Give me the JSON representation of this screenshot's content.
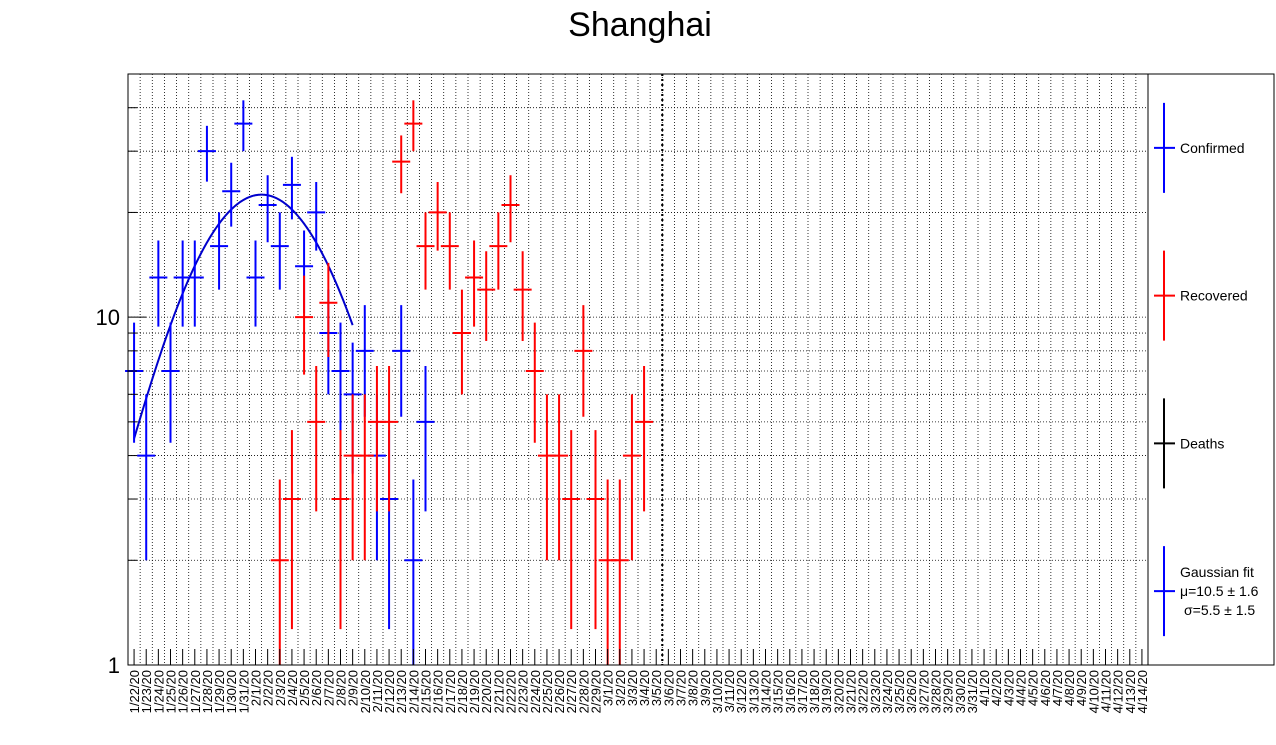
{
  "chart_data": {
    "type": "errorbar-scatter",
    "title": "Shanghai",
    "xlabel": "",
    "ylabel": "",
    "y_scale": "log",
    "ylim": [
      1,
      50
    ],
    "y_tick_labels": [
      {
        "value": 1,
        "label": "1"
      },
      {
        "value": 10,
        "label": "10"
      }
    ],
    "categories": [
      "1/22/20",
      "1/23/20",
      "1/24/20",
      "1/25/20",
      "1/26/20",
      "1/27/20",
      "1/28/20",
      "1/29/20",
      "1/30/20",
      "1/31/20",
      "2/1/20",
      "2/2/20",
      "2/3/20",
      "2/4/20",
      "2/5/20",
      "2/6/20",
      "2/7/20",
      "2/8/20",
      "2/9/20",
      "2/10/20",
      "2/11/20",
      "2/12/20",
      "2/13/20",
      "2/14/20",
      "2/15/20",
      "2/16/20",
      "2/17/20",
      "2/18/20",
      "2/19/20",
      "2/20/20",
      "2/21/20",
      "2/22/20",
      "2/23/20",
      "2/24/20",
      "2/25/20",
      "2/26/20",
      "2/27/20",
      "2/28/20",
      "2/29/20",
      "3/1/20",
      "3/2/20",
      "3/3/20",
      "3/4/20",
      "3/5/20",
      "3/6/20",
      "3/7/20",
      "3/8/20",
      "3/9/20",
      "3/10/20",
      "3/11/20",
      "3/12/20",
      "3/13/20",
      "3/14/20",
      "3/15/20",
      "3/16/20",
      "3/17/20",
      "3/18/20",
      "3/19/20",
      "3/20/20",
      "3/21/20",
      "3/22/20",
      "3/23/20",
      "3/24/20",
      "3/25/20",
      "3/26/20",
      "3/27/20",
      "3/28/20",
      "3/29/20",
      "3/30/20",
      "3/31/20",
      "4/1/20",
      "4/2/20",
      "4/3/20",
      "4/4/20",
      "4/5/20",
      "4/6/20",
      "4/7/20",
      "4/8/20",
      "4/9/20",
      "4/10/20",
      "4/11/20",
      "4/12/20",
      "4/13/20",
      "4/14/20"
    ],
    "series": [
      {
        "name": "Confirmed",
        "color": "#0000ff",
        "points": [
          {
            "i": 0,
            "y": 7
          },
          {
            "i": 1,
            "y": 4
          },
          {
            "i": 2,
            "y": 13
          },
          {
            "i": 3,
            "y": 7
          },
          {
            "i": 4,
            "y": 13
          },
          {
            "i": 5,
            "y": 13
          },
          {
            "i": 6,
            "y": 30
          },
          {
            "i": 7,
            "y": 16
          },
          {
            "i": 8,
            "y": 23
          },
          {
            "i": 9,
            "y": 36
          },
          {
            "i": 10,
            "y": 13
          },
          {
            "i": 11,
            "y": 21
          },
          {
            "i": 12,
            "y": 16
          },
          {
            "i": 13,
            "y": 24
          },
          {
            "i": 14,
            "y": 14
          },
          {
            "i": 15,
            "y": 20
          },
          {
            "i": 16,
            "y": 9
          },
          {
            "i": 17,
            "y": 7
          },
          {
            "i": 18,
            "y": 6
          },
          {
            "i": 19,
            "y": 8
          },
          {
            "i": 20,
            "y": 4
          },
          {
            "i": 21,
            "y": 3
          },
          {
            "i": 22,
            "y": 8
          },
          {
            "i": 23,
            "y": 2
          },
          {
            "i": 24,
            "y": 5
          }
        ]
      },
      {
        "name": "Recovered",
        "color": "#ff0000",
        "points": [
          {
            "i": 12,
            "y": 2
          },
          {
            "i": 13,
            "y": 3
          },
          {
            "i": 14,
            "y": 10
          },
          {
            "i": 15,
            "y": 5
          },
          {
            "i": 16,
            "y": 11
          },
          {
            "i": 17,
            "y": 3
          },
          {
            "i": 18,
            "y": 4
          },
          {
            "i": 19,
            "y": 4
          },
          {
            "i": 20,
            "y": 5
          },
          {
            "i": 21,
            "y": 5
          },
          {
            "i": 22,
            "y": 28
          },
          {
            "i": 23,
            "y": 36
          },
          {
            "i": 24,
            "y": 16
          },
          {
            "i": 25,
            "y": 20
          },
          {
            "i": 26,
            "y": 16
          },
          {
            "i": 27,
            "y": 9
          },
          {
            "i": 28,
            "y": 13
          },
          {
            "i": 29,
            "y": 12
          },
          {
            "i": 30,
            "y": 16
          },
          {
            "i": 31,
            "y": 21
          },
          {
            "i": 32,
            "y": 12
          },
          {
            "i": 33,
            "y": 7
          },
          {
            "i": 34,
            "y": 4
          },
          {
            "i": 35,
            "y": 4
          },
          {
            "i": 36,
            "y": 3
          },
          {
            "i": 37,
            "y": 8
          },
          {
            "i": 38,
            "y": 3
          },
          {
            "i": 39,
            "y": 2
          },
          {
            "i": 40,
            "y": 2
          },
          {
            "i": 41,
            "y": 4
          },
          {
            "i": 42,
            "y": 5
          }
        ]
      },
      {
        "name": "Deaths",
        "color": "#000000",
        "points": []
      }
    ],
    "fit": {
      "name": "Gaussian fit",
      "color": "#0000cc",
      "mu_label": "μ=10.5 ± 1.6",
      "sigma_label": "σ=5.5 ± 1.5",
      "mu": 10.5,
      "sigma": 5.5,
      "amplitude": 21.5,
      "offset": 1,
      "x_range": [
        0,
        18
      ]
    },
    "marker_line_category": "3/5/20",
    "legend": [
      {
        "label": "Confirmed",
        "color": "#0000ff"
      },
      {
        "label": "Recovered",
        "color": "#ff0000"
      },
      {
        "label": "Deaths",
        "color": "#000000"
      },
      {
        "label": "Gaussian fit",
        "color": "#0000ff",
        "extra": [
          "μ=10.5 ± 1.6",
          "σ=5.5 ± 1.5"
        ]
      }
    ],
    "legend_position": "right",
    "grid": true
  }
}
